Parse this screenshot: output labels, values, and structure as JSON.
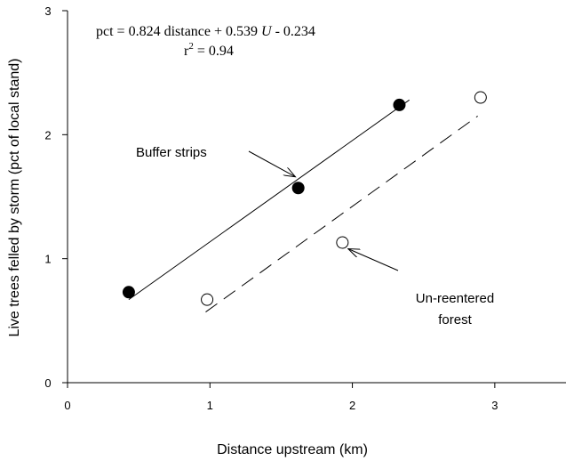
{
  "chart_data": {
    "type": "scatter",
    "xlabel": "Distance upstream (km)",
    "ylabel": "Live trees felled by storm (pct of local stand)",
    "xlim": [
      0,
      3.5
    ],
    "ylim": [
      0,
      3
    ],
    "x_ticks": [
      0,
      1,
      2,
      3
    ],
    "y_ticks": [
      0,
      1,
      2,
      3
    ],
    "grid": false,
    "equation": {
      "prefix": "pct = 0.824 distance + 0.539 ",
      "variable": "U",
      "suffix": " - 0.234",
      "r2_base": "r",
      "r2_exp": "2",
      "r2_value": " = 0.94"
    },
    "series": [
      {
        "name": "Buffer strips",
        "marker": "filled-circle",
        "color": "#000000",
        "x": [
          0.43,
          1.62,
          2.33
        ],
        "y": [
          0.73,
          1.57,
          2.24
        ],
        "fit": {
          "style": "solid",
          "x": [
            0.43,
            2.4
          ],
          "y": [
            0.67,
            2.28
          ]
        }
      },
      {
        "name": "Un-reentered forest",
        "marker": "open-circle",
        "color": "#000000",
        "x": [
          0.98,
          1.93,
          2.9
        ],
        "y": [
          0.67,
          1.13,
          2.3
        ],
        "fit": {
          "style": "dashed",
          "x": [
            0.97,
            2.88
          ],
          "y": [
            0.57,
            2.15
          ]
        }
      }
    ],
    "annotations": [
      {
        "lines": [
          "Buffer strips"
        ],
        "arrow_to": [
          1.6,
          1.66
        ]
      },
      {
        "lines": [
          "Un-reentered",
          "forest"
        ],
        "arrow_to": [
          1.97,
          1.08
        ]
      }
    ]
  }
}
